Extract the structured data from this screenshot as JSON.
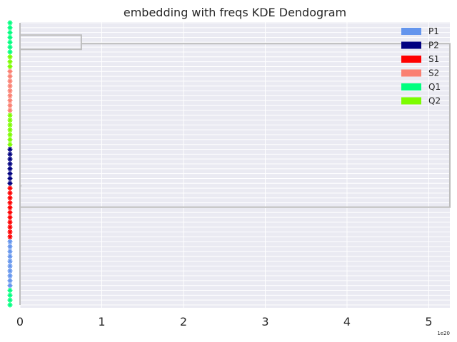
{
  "chart_data": {
    "type": "dendrogram",
    "orientation": "horizontal",
    "title": "embedding with freqs KDE Dendogram",
    "xlabel": "",
    "ylabel": "",
    "x_ticks": [
      "0",
      "1",
      "2",
      "3",
      "4",
      "5"
    ],
    "x_tick_values": [
      0,
      1,
      2,
      3,
      4,
      5
    ],
    "x_offset_label": "1e20",
    "xlim": [
      -0.1,
      5.27
    ],
    "grid": true,
    "legend": {
      "placement": "top-right",
      "entries": [
        {
          "name": "P1",
          "color": "#6495ed"
        },
        {
          "name": "P2",
          "color": "#000080"
        },
        {
          "name": "S1",
          "color": "#ff0000"
        },
        {
          "name": "S2",
          "color": "#fa8072"
        },
        {
          "name": "Q1",
          "color": "#00ff7f"
        },
        {
          "name": "Q2",
          "color": "#7cfc00"
        }
      ]
    },
    "leaf_groups": [
      {
        "class": "Q1",
        "count": 7
      },
      {
        "class": "Q2",
        "count": 3
      },
      {
        "class": "S2",
        "count": 9
      },
      {
        "class": "Q2",
        "count": 7
      },
      {
        "class": "P2",
        "count": 8
      },
      {
        "class": "S1",
        "count": 11
      },
      {
        "class": "P1",
        "count": 10
      },
      {
        "class": "Q1",
        "count": 4
      }
    ],
    "merges": [
      {
        "name": "top-cluster",
        "leaf_range": [
          0,
          8
        ],
        "height": 0.75
      },
      {
        "name": "bottom-cluster",
        "leaf_range": [
          9,
          58
        ],
        "height": 0.0
      },
      {
        "name": "root",
        "children": [
          "top-cluster",
          "bottom-cluster"
        ],
        "height": 5.27
      }
    ],
    "colors": {
      "link": "#bdbdbd",
      "grid": "#ffffff",
      "background": "#eaeaf2"
    }
  }
}
